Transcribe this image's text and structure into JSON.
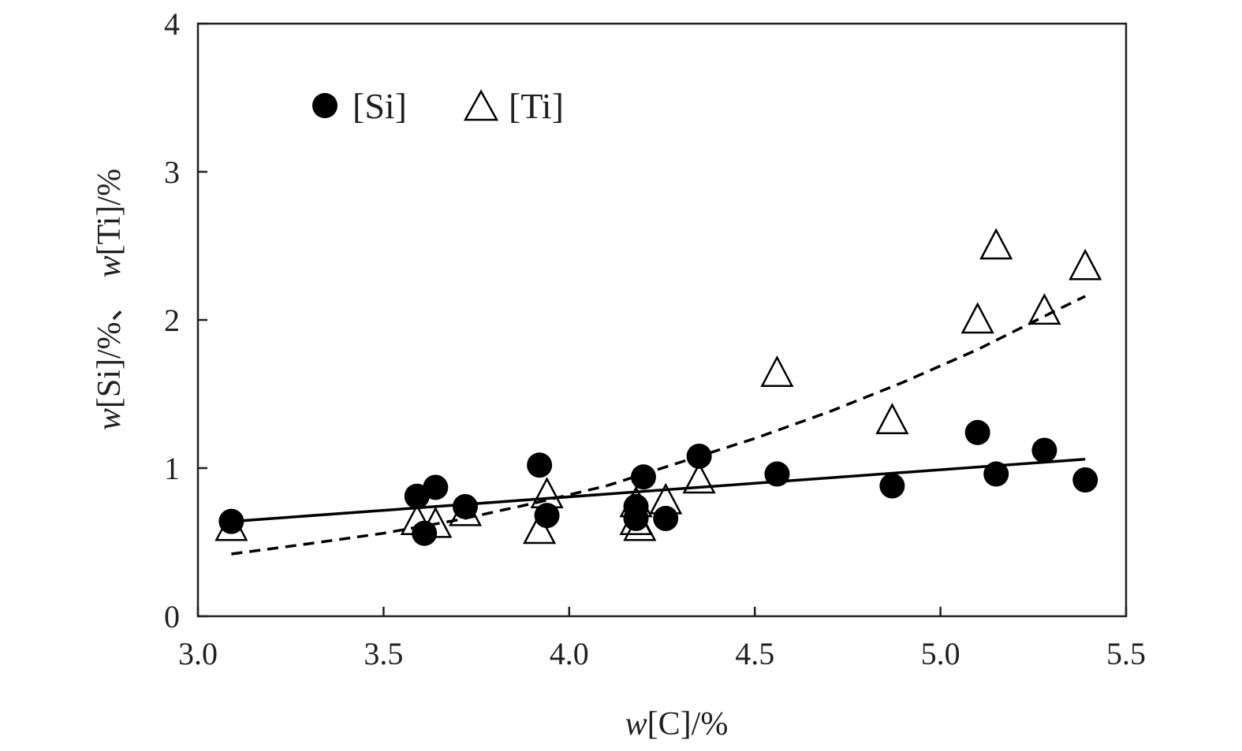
{
  "chart_data": {
    "type": "scatter",
    "xlabel_var": "w",
    "xlabel_rest": "[C]/%",
    "ylabel_var1": "w",
    "ylabel_rest1": "[Si]/%、",
    "ylabel_var2": "w",
    "ylabel_rest2": "[Ti]/%",
    "xlim": [
      3.0,
      5.5
    ],
    "ylim": [
      0,
      4
    ],
    "x_ticks": [
      "3.0",
      "3.5",
      "4.0",
      "4.5",
      "5.0",
      "5.5"
    ],
    "y_ticks": [
      "0",
      "1",
      "2",
      "3",
      "4"
    ],
    "grid": false,
    "legend_position": "top-left",
    "series": [
      {
        "name": "[Si]",
        "marker": "filled-circle",
        "color": "#000000",
        "points": [
          [
            3.09,
            0.64
          ],
          [
            3.59,
            0.81
          ],
          [
            3.61,
            0.56
          ],
          [
            3.64,
            0.87
          ],
          [
            3.72,
            0.74
          ],
          [
            3.92,
            1.02
          ],
          [
            3.94,
            0.68
          ],
          [
            4.18,
            0.74
          ],
          [
            4.18,
            0.66
          ],
          [
            4.2,
            0.94
          ],
          [
            4.26,
            0.66
          ],
          [
            4.35,
            1.08
          ],
          [
            4.56,
            0.96
          ],
          [
            4.87,
            0.88
          ],
          [
            5.1,
            1.24
          ],
          [
            5.15,
            0.96
          ],
          [
            5.28,
            1.12
          ],
          [
            5.39,
            0.92
          ]
        ],
        "trend": {
          "style": "solid",
          "x": [
            3.09,
            5.39
          ],
          "y": [
            0.64,
            1.06
          ]
        }
      },
      {
        "name": "[Ti]",
        "marker": "open-triangle",
        "color": "#000000",
        "points": [
          [
            3.09,
            0.6
          ],
          [
            3.59,
            0.64
          ],
          [
            3.64,
            0.62
          ],
          [
            3.72,
            0.7
          ],
          [
            3.92,
            0.58
          ],
          [
            3.94,
            0.82
          ],
          [
            4.18,
            0.64
          ],
          [
            4.18,
            0.76
          ],
          [
            4.19,
            0.6
          ],
          [
            4.26,
            0.78
          ],
          [
            4.35,
            0.92
          ],
          [
            4.56,
            1.64
          ],
          [
            4.87,
            1.32
          ],
          [
            5.1,
            2.0
          ],
          [
            5.15,
            2.5
          ],
          [
            5.28,
            2.06
          ],
          [
            5.39,
            2.36
          ]
        ],
        "trend": {
          "style": "dashed",
          "x": [
            3.09,
            3.3,
            3.5,
            3.7,
            3.9,
            4.1,
            4.3,
            4.5,
            4.7,
            4.9,
            5.1,
            5.3,
            5.39
          ],
          "y": [
            0.42,
            0.49,
            0.56,
            0.65,
            0.76,
            0.88,
            1.04,
            1.2,
            1.38,
            1.58,
            1.8,
            2.05,
            2.16
          ]
        }
      }
    ]
  }
}
